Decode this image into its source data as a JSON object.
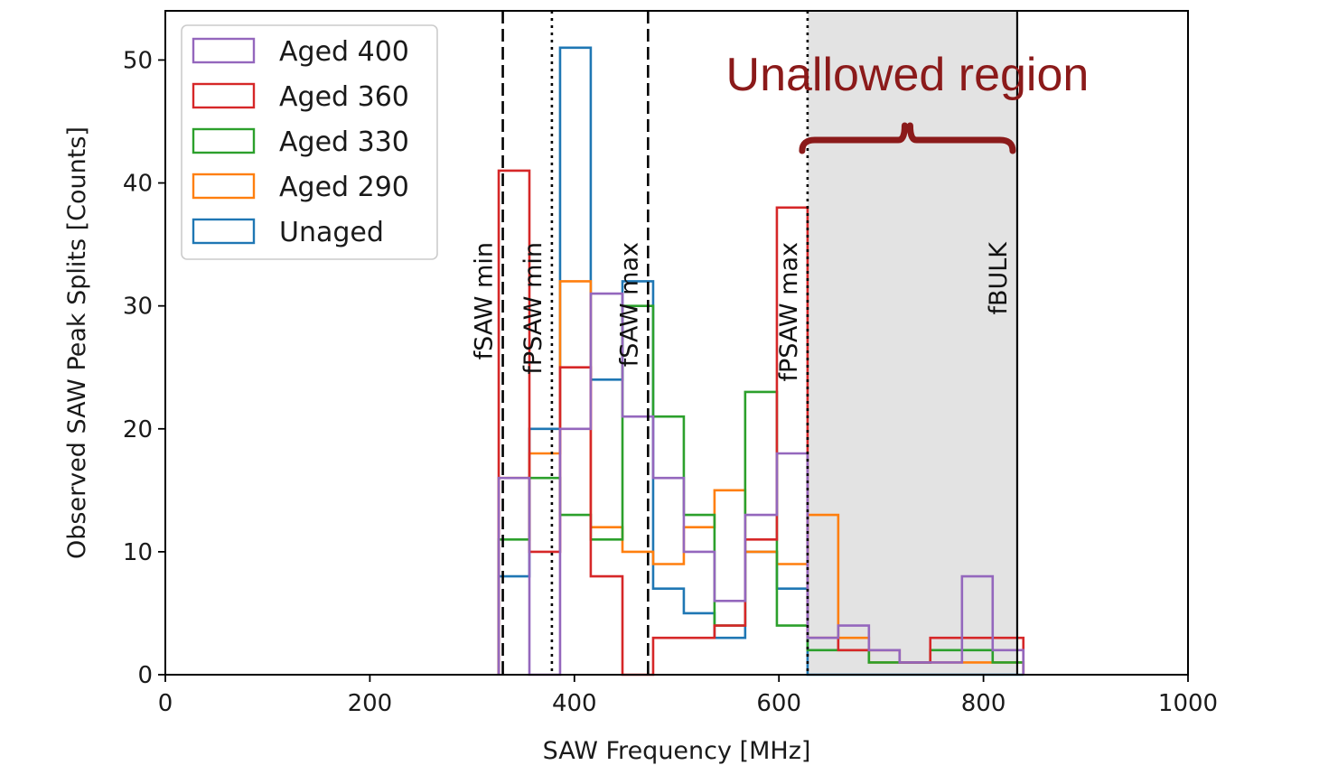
{
  "chart_data": {
    "type": "histogram",
    "xlabel": "SAW Frequency [MHz]",
    "ylabel": "Observed SAW Peak Splits [Counts]",
    "xlim": [
      0,
      1000
    ],
    "ylim": [
      0,
      54
    ],
    "x_ticks": [
      0,
      200,
      400,
      600,
      800,
      1000
    ],
    "y_ticks": [
      0,
      10,
      20,
      30,
      40,
      50
    ],
    "bin_edges": [
      326,
      356,
      386,
      416,
      447,
      477,
      507,
      537,
      567,
      598,
      628,
      658,
      688,
      718,
      748,
      779,
      809,
      839
    ],
    "series": [
      {
        "name": "Aged 400",
        "color": "#9467bd",
        "values": [
          16,
          0,
          20,
          31,
          21,
          16,
          10,
          6,
          13,
          18,
          3,
          4,
          2,
          1,
          1,
          8,
          2
        ]
      },
      {
        "name": "Aged 360",
        "color": "#d62728",
        "values": [
          41,
          10,
          25,
          8,
          0,
          3,
          3,
          4,
          11,
          38,
          3,
          2,
          2,
          1,
          3,
          3,
          3
        ]
      },
      {
        "name": "Aged 330",
        "color": "#2ca02c",
        "values": [
          11,
          16,
          13,
          11,
          30,
          21,
          13,
          4,
          23,
          4,
          2,
          2,
          1,
          1,
          2,
          2,
          1
        ]
      },
      {
        "name": "Aged 290",
        "color": "#ff7f0e",
        "values": [
          16,
          18,
          32,
          12,
          10,
          9,
          12,
          15,
          10,
          9,
          13,
          3,
          1,
          1,
          1,
          1,
          1
        ]
      },
      {
        "name": "Unaged",
        "color": "#1f77b4",
        "values": [
          8,
          20,
          51,
          24,
          32,
          7,
          5,
          3,
          10,
          7,
          0,
          0,
          0,
          0,
          0,
          0,
          0
        ]
      }
    ],
    "vertical_lines": [
      {
        "x": 330,
        "label": "fSAW min",
        "style": "dashed"
      },
      {
        "x": 378,
        "label": "fPSAW min",
        "style": "dotted"
      },
      {
        "x": 472,
        "label": "fSAW max",
        "style": "dashed"
      },
      {
        "x": 628,
        "label": "fPSAW max",
        "style": "dotted"
      },
      {
        "x": 833,
        "label": "fBULK",
        "style": "solid"
      }
    ],
    "shaded_region": {
      "x_start": 628,
      "x_end": 833,
      "color": "#e3e3e3"
    },
    "annotation": {
      "text": "Unallowed region",
      "color": "#8b1a1a",
      "x_start": 628,
      "x_end": 833
    },
    "legend": {
      "position": "top-left"
    }
  }
}
